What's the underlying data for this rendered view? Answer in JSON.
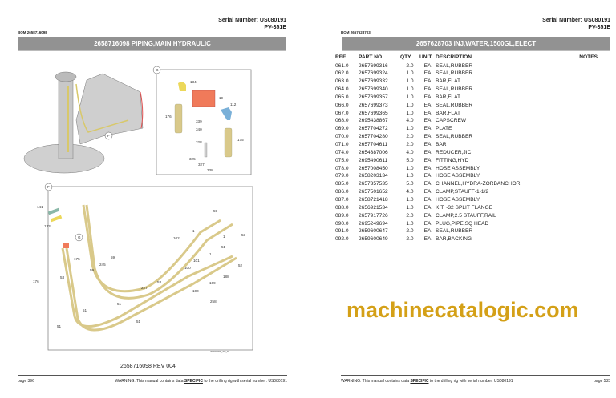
{
  "left_page": {
    "serial_label": "Serial Number: US080191",
    "model": "PV-351E",
    "bom": "BOM 2658716098",
    "banner": "2658716098 PIPING,MAIN HYDRAULIC",
    "diagram_code": "2658716098_206_00",
    "revision": "2658716098 REV 004",
    "page": "page 396",
    "warning_pre": "WARNING:  This manual contains data ",
    "warning_bold": "SPECIFIC",
    "warning_post": " to the drilling rig with serial number: US080191",
    "view_g_callouts": [
      "G",
      "134",
      "19",
      "112",
      "176",
      "339",
      "340",
      "328",
      "175",
      "325",
      "327",
      "338",
      "F"
    ],
    "view_f_callouts": [
      "F",
      "141",
      "133",
      "G",
      "175",
      "176",
      "53",
      "245",
      "59",
      "59",
      "227",
      "53",
      "59",
      "1",
      "1",
      "53",
      "102",
      "51",
      "1",
      "101",
      "100",
      "52",
      "188",
      "169",
      "100",
      "258",
      "51",
      "51",
      "51",
      "51"
    ]
  },
  "right_page": {
    "serial_label": "Serial Number: US080191",
    "model": "PV-351E",
    "bom": "BOM 2657628703",
    "banner": "2657628703 INJ,WATER,1500GL,ELECT",
    "page": "page 535",
    "warning_pre": "WARNING:  This manual contains data ",
    "warning_bold": "SPECIFIC",
    "warning_post": " to the drilling rig with serial number: US080191",
    "columns": [
      "REF.",
      "PART NO.",
      "QTY",
      "UNIT",
      "DESCRIPTION",
      "NOTES"
    ],
    "rows": [
      [
        "061.0",
        "2657699316",
        "2.0",
        "EA",
        "SEAL,RUBBER"
      ],
      [
        "062.0",
        "2657699324",
        "1.0",
        "EA",
        "SEAL,RUBBER"
      ],
      [
        "063.0",
        "2657699332",
        "1.0",
        "EA",
        "BAR,FLAT"
      ],
      [
        "064.0",
        "2657699340",
        "1.0",
        "EA",
        "SEAL,RUBBER"
      ],
      [
        "065.0",
        "2657699357",
        "1.0",
        "EA",
        "BAR,FLAT"
      ],
      [
        "066.0",
        "2657699373",
        "1.0",
        "EA",
        "SEAL,RUBBER"
      ],
      [
        "067.0",
        "2657699365",
        "1.0",
        "EA",
        "BAR,FLAT"
      ],
      [
        "068.0",
        "2695438867",
        "4.0",
        "EA",
        "CAPSCREW"
      ],
      [
        "069.0",
        "2657704272",
        "1.0",
        "EA",
        "PLATE"
      ],
      [
        "070.0",
        "2657704280",
        "2.0",
        "EA",
        "SEAL,RUBBER"
      ],
      [
        "071.0",
        "2657704611",
        "2.0",
        "EA",
        "BAR"
      ],
      [
        "074.0",
        "2654387006",
        "4.0",
        "EA",
        "REDUCER,JIC"
      ],
      [
        "075.0",
        "2695490611",
        "5.0",
        "EA",
        "FITTING,HYD"
      ],
      [
        "078.0",
        "2657008450",
        "1.0",
        "EA",
        "HOSE ASSEMBLY"
      ],
      [
        "079.0",
        "2658203134",
        "1.0",
        "EA",
        "HOSE ASSEMBLY"
      ],
      [
        "085.0",
        "2657357535",
        "5.0",
        "EA",
        "CHANNEL,HYDRA-ZORBANCHOR"
      ],
      [
        "086.0",
        "2657501652",
        "4.0",
        "EA",
        "CLAMP,STAUFF-1-1/2"
      ],
      [
        "087.0",
        "2658721418",
        "1.0",
        "EA",
        "HOSE ASSEMBLY"
      ],
      [
        "088.0",
        "2656921534",
        "1.0",
        "EA",
        "KIT, -32 SPLIT FLANGE"
      ],
      [
        "089.0",
        "2657917726",
        "2.0",
        "EA",
        "CLAMP,2.5 STAUFF,RAIL"
      ],
      [
        "090.0",
        "2695249694",
        "1.0",
        "EA",
        "PLUG,PIPE,SQ HEAD"
      ],
      [
        "091.0",
        "2659600647",
        "2.0",
        "EA",
        "SEAL,RUBBER"
      ],
      [
        "092.0",
        "2659600649",
        "2.0",
        "EA",
        "BAR,BACKING"
      ]
    ]
  },
  "watermark": "machinecatalogic.com",
  "colors": {
    "banner": "#929292",
    "watermark": "#d4a017",
    "hose": "#d9c98a",
    "valve": "#f07a5a",
    "fitting_blue": "#7ab0d8"
  }
}
